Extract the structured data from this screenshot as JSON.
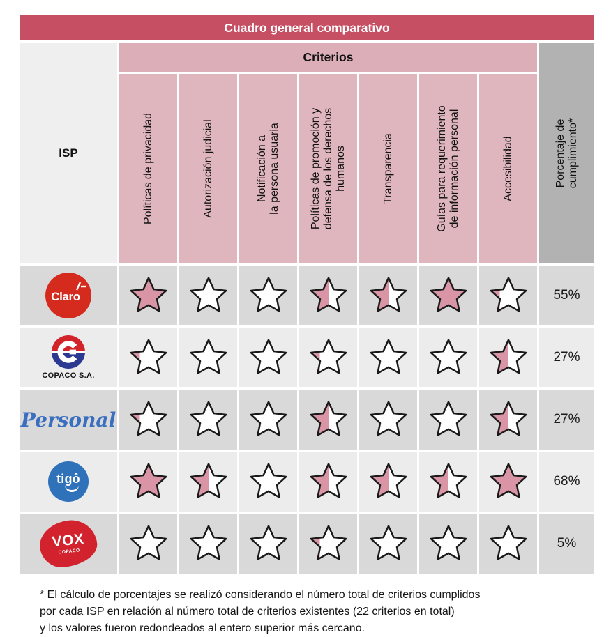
{
  "title": "Cuadro general comparativo",
  "header": {
    "criterios": "Criterios",
    "isp": "ISP",
    "percentage": "Porcentaje de\ncumplimiento*"
  },
  "chart_data": {
    "type": "table",
    "title": "Cuadro general comparativo",
    "criteria_columns": [
      "Políticas de privacidad",
      "Autorización judicial",
      "Notificación a\nla persona usuaria",
      "Políticas de promoción y\ndefensa de los derechos\nhumanos",
      "Transparencia",
      "Guías para requerimiento\nde información personal",
      "Accesibilidad"
    ],
    "percentage_column": "Porcentaje de cumplimiento*",
    "star_scale_note": "star fill fraction: 1 = full, 0.5 = half, 0.25 = quarter, 0 = empty",
    "rows": [
      {
        "isp": "Claro",
        "stars": [
          1,
          0,
          0,
          0.5,
          0.5,
          1,
          0.25
        ],
        "percentage": "55%"
      },
      {
        "isp": "COPACO",
        "stars": [
          0.25,
          0,
          0,
          0.25,
          0,
          0,
          0.5
        ],
        "percentage": "27%"
      },
      {
        "isp": "Personal",
        "stars": [
          0.25,
          0,
          0,
          0.5,
          0,
          0,
          0.5
        ],
        "percentage": "27%"
      },
      {
        "isp": "tigo",
        "stars": [
          1,
          0.5,
          0,
          0.5,
          0.5,
          0.5,
          1
        ],
        "percentage": "68%"
      },
      {
        "isp": "VOX",
        "stars": [
          0,
          0,
          0,
          0.25,
          0,
          0,
          0
        ],
        "percentage": "5%"
      }
    ]
  },
  "logos": {
    "Claro": {
      "type": "claro",
      "text": "Claro",
      "bg": "#D52B1E"
    },
    "COPACO": {
      "type": "copaco",
      "caption": "COPACO S.A.",
      "red": "#D2232A",
      "blue": "#2B3990"
    },
    "Personal": {
      "type": "personal",
      "text": "Personal",
      "color": "#3A6FC0"
    },
    "tigo": {
      "type": "tigo",
      "text": "tigô",
      "bg": "#2F72B9"
    },
    "VOX": {
      "type": "vox",
      "text": "VOX",
      "sub": "COPACO",
      "bg": "#D2222E"
    }
  },
  "footnote": "* El cálculo de porcentajes se realizó considerando el número total de criterios cumplidos\npor cada ISP en relación al número total de criterios existentes (22 criterios en total)\ny los valores fueron redondeados al entero superior más cercano.",
  "colors": {
    "title_bg": "#C64F63",
    "criterios_bg": "#DCAFB8",
    "criteria_cell_bg": "#E0B6BE",
    "pct_header_bg": "#B2B2B2",
    "isp_header_bg": "#EFEFEF",
    "row_dark": "#D9D9D9",
    "row_light": "#ECECEC",
    "star_fill": "#D995A5",
    "star_outline": "#1A1A1A"
  }
}
